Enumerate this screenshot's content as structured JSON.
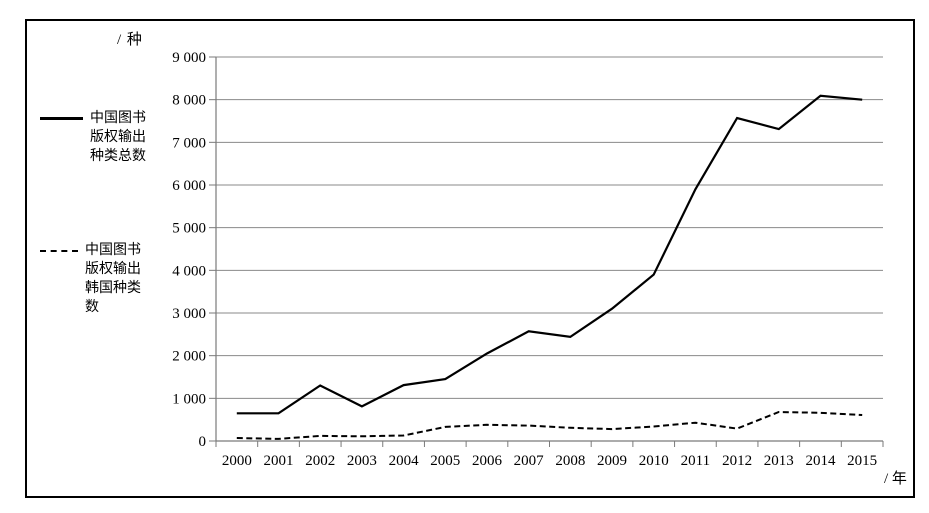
{
  "figure": {
    "y_unit_label": "/ 种",
    "x_unit_label": "/ 年"
  },
  "chart_data": {
    "type": "line",
    "x": [
      "2000",
      "2001",
      "2002",
      "2003",
      "2004",
      "2005",
      "2006",
      "2007",
      "2008",
      "2009",
      "2010",
      "2011",
      "2012",
      "2013",
      "2014",
      "2015"
    ],
    "series": [
      {
        "name": "中国图书版权输出种类总数",
        "line_style": "solid",
        "color": "#000000",
        "values": [
          650,
          650,
          1300,
          810,
          1310,
          1450,
          2050,
          2570,
          2440,
          3100,
          3900,
          5900,
          7570,
          7310,
          8090,
          8000
        ]
      },
      {
        "name": "中国图书版权输出韩国种类数",
        "line_style": "dashed",
        "color": "#000000",
        "values": [
          70,
          50,
          120,
          110,
          130,
          330,
          380,
          360,
          310,
          280,
          340,
          430,
          290,
          680,
          660,
          610
        ]
      }
    ],
    "title": "",
    "ylabel": "/ 种",
    "xlabel": "/ 年",
    "ylim": [
      0,
      9000
    ],
    "ytick_step": 1000,
    "ytick_labels": [
      "0",
      "1 000",
      "2 000",
      "3 000",
      "4 000",
      "5 000",
      "6 000",
      "7 000",
      "8 000",
      "9 000"
    ],
    "grid": true,
    "legend_position": "left",
    "colors": {
      "line": "#000000",
      "grid": "#8a8a8a",
      "axis": "#7a7a7a",
      "border": "#000000",
      "text": "#000000"
    }
  }
}
